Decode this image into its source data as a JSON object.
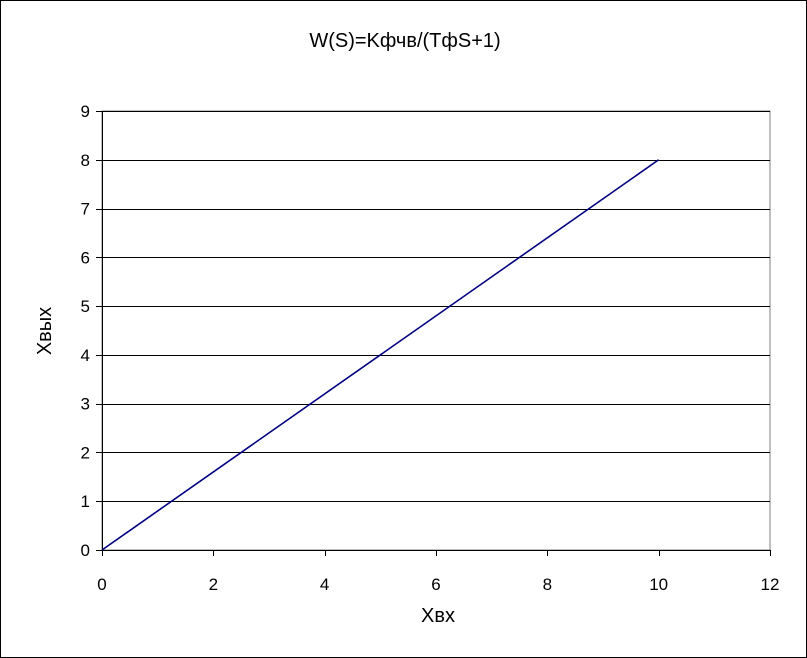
{
  "chart_data": {
    "type": "line",
    "title": "W(S)=Kфчв/(TфS+1)",
    "xlabel": "Xвх",
    "ylabel": "Xвых",
    "xlim": [
      0,
      12
    ],
    "ylim": [
      0,
      9
    ],
    "x_ticks": [
      0,
      2,
      4,
      6,
      8,
      10,
      12
    ],
    "y_ticks": [
      0,
      1,
      2,
      3,
      4,
      5,
      6,
      7,
      8,
      9
    ],
    "grid": {
      "horizontal": true,
      "vertical": false
    },
    "legend": "none",
    "series": [
      {
        "color": "#000080",
        "x": [
          0,
          10
        ],
        "y": [
          0,
          8
        ]
      }
    ]
  }
}
